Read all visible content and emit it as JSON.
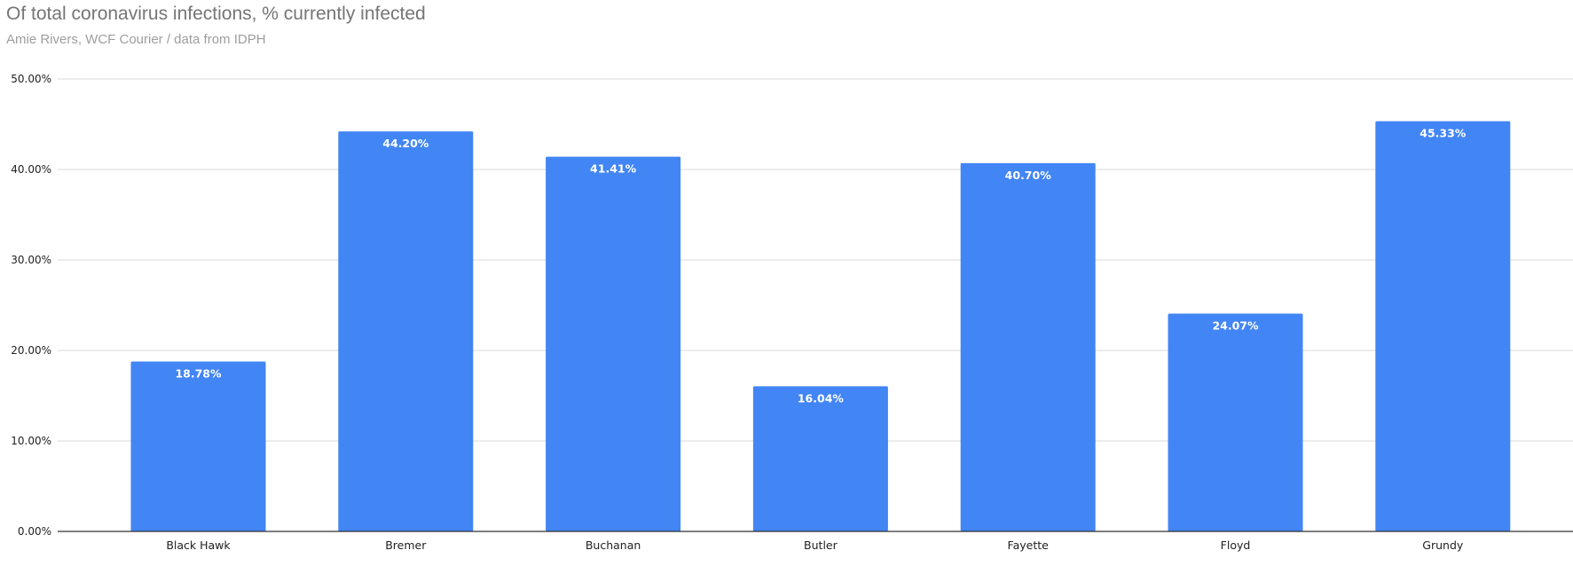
{
  "chart_data": {
    "type": "bar",
    "title": "Of total coronavirus infections, % currently infected",
    "subtitle": "Amie Rivers, WCF Courier / data from IDPH",
    "categories": [
      "Black Hawk",
      "Bremer",
      "Buchanan",
      "Butler",
      "Fayette",
      "Floyd",
      "Grundy"
    ],
    "values": [
      18.78,
      44.2,
      41.41,
      16.04,
      40.7,
      24.07,
      45.33
    ],
    "data_labels": [
      "18.78%",
      "44.20%",
      "41.41%",
      "16.04%",
      "40.70%",
      "24.07%",
      "45.33%"
    ],
    "yticks": [
      "0.00%",
      "10.00%",
      "20.00%",
      "30.00%",
      "40.00%",
      "50.00%"
    ],
    "ylim": [
      0,
      50
    ],
    "grid": true,
    "legend": "none",
    "colors": {
      "bar": "#4285f4",
      "grid": "#d9d9d9",
      "axis": "#333333"
    }
  }
}
